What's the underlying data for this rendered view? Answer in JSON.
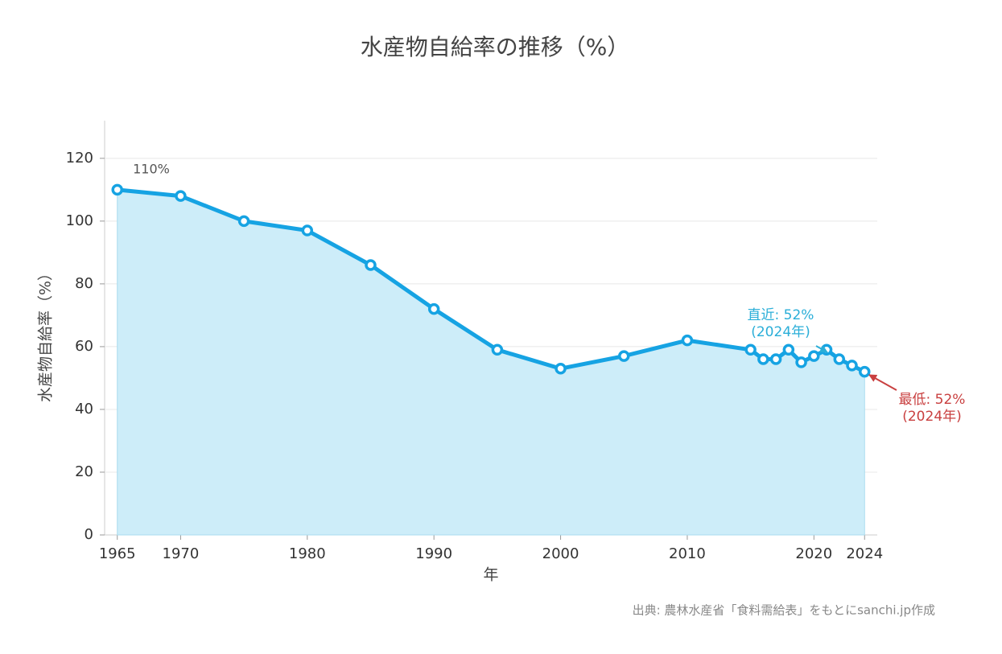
{
  "chart_data": {
    "type": "line",
    "title": "水産物自給率の推移（%）",
    "x_label": "年",
    "y_label": "水産物自給率（%）",
    "x": [
      1965,
      1970,
      1975,
      1980,
      1985,
      1990,
      1995,
      2000,
      2005,
      2010,
      2015,
      2016,
      2017,
      2018,
      2019,
      2020,
      2021,
      2022,
      2023,
      2024
    ],
    "series": [
      {
        "name": "水産物自給率",
        "color": "#16a3e3",
        "values": [
          110,
          108,
          100,
          97,
          86,
          72,
          59,
          53,
          57,
          62,
          59,
          56,
          56,
          59,
          55,
          57,
          59,
          56,
          54,
          52
        ]
      }
    ],
    "area_fill": "#cdedf9",
    "xlim": [
      1964,
      2025
    ],
    "ylim": [
      0,
      132
    ],
    "xticks": [
      1965,
      1970,
      1980,
      1990,
      2000,
      2010,
      2020,
      2024
    ],
    "yticks": [
      0,
      20,
      40,
      60,
      80,
      100,
      120
    ],
    "grid": true,
    "annotations": [
      {
        "lines": [
          "110%"
        ],
        "color": "#555555"
      },
      {
        "lines": [
          "直近: 52%",
          "(2024年)"
        ],
        "color": "#2aaed8"
      },
      {
        "lines": [
          "最低: 52%",
          "(2024年)"
        ],
        "color": "#c94040"
      }
    ],
    "source": "出典: 農林水産省「食料需給表」をもとにsanchi.jp作成"
  }
}
